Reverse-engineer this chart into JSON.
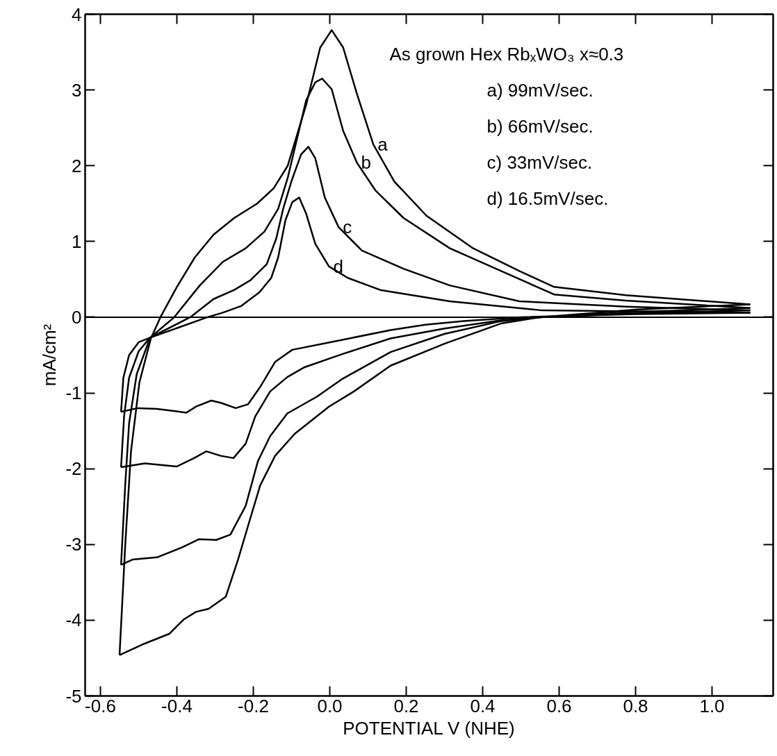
{
  "chart_data": {
    "type": "line",
    "xlabel": "POTENTIAL V (NHE)",
    "ylabel": "mA/cm²",
    "xlim": [
      -0.64,
      1.16
    ],
    "ylim": [
      -5,
      4
    ],
    "xticks": [
      -0.6,
      -0.4,
      -0.2,
      {
        "value": 0,
        "label": "0.0"
      },
      0.2,
      0.4,
      0.6,
      0.8,
      {
        "value": 1,
        "label": "1.0"
      }
    ],
    "yticks": [
      -5,
      -4,
      -3,
      -2,
      -1,
      0,
      1,
      2,
      3,
      4
    ],
    "grid": false,
    "legend": false,
    "marker": "none",
    "line_style": "solid",
    "ref_lines": [
      {
        "axis": "y",
        "value": 0,
        "label": null,
        "color": "#000000"
      }
    ],
    "annotations": [
      "As grown Hex RbₓWO₃ x≈0.3",
      "a) 99mV/sec.",
      "b) 66mV/sec.",
      "c) 33mV/sec.",
      "d) 16.5mV/sec."
    ],
    "series": [
      {
        "name": "a",
        "color": "#000000",
        "x": [
          -0.55,
          -0.535,
          -0.52,
          -0.498,
          -0.468,
          -0.443,
          -0.4,
          -0.353,
          -0.304,
          -0.25,
          -0.19,
          -0.147,
          -0.11,
          -0.062,
          -0.025,
          0.005,
          0.035,
          0.071,
          0.114,
          0.169,
          0.253,
          0.375,
          0.496,
          0.587,
          0.775,
          1.1
        ],
        "values": [
          -4.46,
          -3.0,
          -1.77,
          -0.86,
          -0.28,
          0.0,
          0.4,
          0.79,
          1.09,
          1.31,
          1.5,
          1.7,
          2.0,
          2.8,
          3.56,
          3.79,
          3.56,
          2.95,
          2.28,
          1.79,
          1.34,
          0.91,
          0.61,
          0.4,
          0.29,
          0.17
        ]
      },
      {
        "name": "b",
        "color": "#000000",
        "x": [
          -0.546,
          -0.535,
          -0.525,
          -0.505,
          -0.47,
          -0.407,
          -0.34,
          -0.28,
          -0.22,
          -0.171,
          -0.135,
          -0.11,
          -0.062,
          -0.038,
          -0.02,
          0.005,
          0.035,
          0.071,
          0.12,
          0.193,
          0.314,
          0.435,
          0.587,
          0.775,
          1.1
        ],
        "values": [
          -3.27,
          -2.2,
          -1.4,
          -0.75,
          -0.27,
          0.0,
          0.42,
          0.73,
          0.91,
          1.13,
          1.43,
          1.84,
          2.86,
          3.1,
          3.15,
          3.01,
          2.46,
          2.04,
          1.67,
          1.31,
          0.91,
          0.64,
          0.3,
          0.22,
          0.12
        ]
      },
      {
        "name": "c",
        "color": "#000000",
        "x": [
          -0.546,
          -0.538,
          -0.525,
          -0.5,
          -0.47,
          -0.365,
          -0.304,
          -0.25,
          -0.207,
          -0.165,
          -0.14,
          -0.122,
          -0.1,
          -0.075,
          -0.056,
          -0.038,
          -0.013,
          0.023,
          0.084,
          0.193,
          0.314,
          0.496,
          0.775,
          1.1
        ],
        "values": [
          -1.98,
          -1.3,
          -0.8,
          -0.45,
          -0.27,
          0.0,
          0.24,
          0.36,
          0.49,
          0.7,
          1.04,
          1.43,
          1.8,
          2.15,
          2.25,
          2.1,
          1.58,
          1.19,
          0.88,
          0.64,
          0.42,
          0.21,
          0.14,
          0.09
        ]
      },
      {
        "name": "d",
        "color": "#000000",
        "x": [
          -0.546,
          -0.54,
          -0.525,
          -0.5,
          -0.47,
          -0.32,
          -0.28,
          -0.231,
          -0.184,
          -0.153,
          -0.135,
          -0.116,
          -0.098,
          -0.08,
          -0.062,
          -0.038,
          -0.002,
          0.047,
          0.132,
          0.314,
          0.556,
          1.1
        ],
        "values": [
          -1.25,
          -0.8,
          -0.5,
          -0.33,
          -0.27,
          0.0,
          0.06,
          0.15,
          0.33,
          0.52,
          0.79,
          1.28,
          1.52,
          1.58,
          1.37,
          0.97,
          0.67,
          0.52,
          0.36,
          0.21,
          0.09,
          0.06
        ]
      },
      {
        "color": "#000000",
        "x": [
          1.1,
          0.8,
          0.55,
          0.45,
          0.3,
          0.159,
          0.063,
          -0.002,
          -0.092,
          -0.143,
          -0.182,
          -0.207,
          -0.24,
          -0.272,
          -0.317,
          -0.35,
          -0.382,
          -0.42,
          -0.485,
          -0.55
        ],
        "values": [
          0.17,
          0.1,
          0.0,
          -0.08,
          -0.35,
          -0.64,
          -0.98,
          -1.18,
          -1.54,
          -1.83,
          -2.22,
          -2.64,
          -3.2,
          -3.69,
          -3.85,
          -3.89,
          -3.99,
          -4.18,
          -4.31,
          -4.46
        ]
      },
      {
        "color": "#000000",
        "x": [
          1.1,
          0.8,
          0.55,
          0.45,
          0.3,
          0.159,
          0.031,
          -0.034,
          -0.111,
          -0.156,
          -0.188,
          -0.22,
          -0.26,
          -0.297,
          -0.342,
          -0.387,
          -0.452,
          -0.516,
          -0.546
        ],
        "values": [
          0.12,
          0.07,
          0.0,
          -0.05,
          -0.22,
          -0.46,
          -0.82,
          -1.05,
          -1.27,
          -1.57,
          -1.9,
          -2.49,
          -2.87,
          -2.94,
          -2.93,
          -3.04,
          -3.17,
          -3.2,
          -3.27
        ]
      },
      {
        "color": "#000000",
        "x": [
          1.1,
          0.8,
          0.55,
          0.45,
          0.3,
          0.159,
          0.031,
          -0.066,
          -0.111,
          -0.156,
          -0.195,
          -0.22,
          -0.252,
          -0.285,
          -0.323,
          -0.355,
          -0.4,
          -0.484,
          -0.546
        ],
        "values": [
          0.09,
          0.05,
          0.0,
          -0.04,
          -0.15,
          -0.28,
          -0.49,
          -0.66,
          -0.79,
          -0.98,
          -1.31,
          -1.67,
          -1.86,
          -1.83,
          -1.77,
          -1.86,
          -1.97,
          -1.93,
          -1.98
        ]
      },
      {
        "color": "#000000",
        "x": [
          1.1,
          0.8,
          0.5,
          0.35,
          0.25,
          0.159,
          0.031,
          -0.098,
          -0.143,
          -0.182,
          -0.214,
          -0.246,
          -0.285,
          -0.31,
          -0.35,
          -0.375,
          -0.452,
          -0.503,
          -0.546
        ],
        "values": [
          0.06,
          0.04,
          0.0,
          -0.05,
          -0.1,
          -0.17,
          -0.3,
          -0.43,
          -0.59,
          -0.92,
          -1.15,
          -1.2,
          -1.13,
          -1.1,
          -1.18,
          -1.26,
          -1.21,
          -1.2,
          -1.25
        ]
      }
    ]
  }
}
